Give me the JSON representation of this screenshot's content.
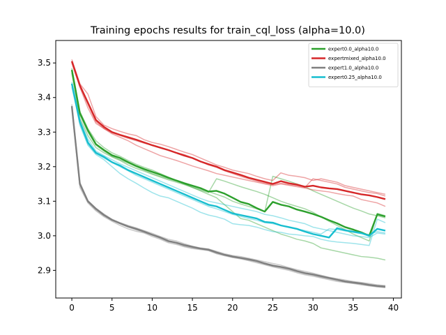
{
  "chart_data": {
    "type": "line",
    "title": "Training epochs results for train_cql_loss (alpha=10.0)",
    "xlabel": "",
    "ylabel": "",
    "xlim": [
      -2,
      41
    ],
    "ylim": [
      2.82,
      3.565
    ],
    "xticks": [
      0,
      5,
      10,
      15,
      20,
      25,
      30,
      35,
      40
    ],
    "yticks": [
      2.9,
      3.0,
      3.1,
      3.2,
      3.3,
      3.4,
      3.5
    ],
    "grid": false,
    "legend_position": "top-right",
    "series": [
      {
        "name": "expert0.0_alpha10.0",
        "color": "#2ca02c",
        "values": [
          3.48,
          3.355,
          3.305,
          3.265,
          3.248,
          3.233,
          3.225,
          3.213,
          3.202,
          3.193,
          3.185,
          3.177,
          3.168,
          3.16,
          3.152,
          3.145,
          3.138,
          3.128,
          3.13,
          3.122,
          3.11,
          3.098,
          3.092,
          3.08,
          3.07,
          3.098,
          3.09,
          3.085,
          3.076,
          3.07,
          3.063,
          3.055,
          3.045,
          3.036,
          3.025,
          3.018,
          3.01,
          3.0,
          3.062,
          3.056
        ],
        "faint": [
          [
            3.47,
            3.34,
            3.29,
            3.255,
            3.24,
            3.228,
            3.218,
            3.205,
            3.195,
            3.187,
            3.178,
            3.17,
            3.162,
            3.155,
            3.148,
            3.14,
            3.132,
            3.125,
            3.165,
            3.158,
            3.15,
            3.142,
            3.135,
            3.128,
            3.12,
            3.11,
            3.1,
            3.092,
            3.085,
            3.078,
            3.068,
            3.055,
            3.042,
            3.03,
            3.018,
            3.005,
            2.995,
            2.985,
            3.065,
            3.058
          ],
          [
            3.485,
            3.36,
            3.31,
            3.275,
            3.255,
            3.24,
            3.23,
            3.218,
            3.207,
            3.198,
            3.19,
            3.18,
            3.17,
            3.16,
            3.15,
            3.14,
            3.13,
            3.12,
            3.11,
            3.09,
            3.07,
            3.05,
            3.045,
            3.035,
            3.025,
            3.015,
            3.005,
            2.998,
            2.99,
            2.985,
            2.978,
            2.965,
            2.96,
            2.955,
            2.95,
            2.945,
            2.94,
            2.938,
            2.935,
            2.93
          ],
          [
            3.475,
            3.35,
            3.3,
            3.262,
            3.245,
            3.23,
            3.22,
            3.21,
            3.2,
            3.19,
            3.18,
            3.172,
            3.165,
            3.158,
            3.15,
            3.143,
            3.135,
            3.128,
            3.12,
            3.112,
            3.1,
            3.092,
            3.085,
            3.078,
            3.07,
            3.172,
            3.165,
            3.158,
            3.15,
            3.142,
            3.13,
            3.12,
            3.11,
            3.1,
            3.09,
            3.08,
            3.072,
            3.063,
            3.058,
            3.052
          ]
        ]
      },
      {
        "name": "expertmixed_alpha10.0",
        "color": "#d62728",
        "values": [
          3.505,
          3.435,
          3.385,
          3.335,
          3.315,
          3.3,
          3.292,
          3.285,
          3.278,
          3.27,
          3.262,
          3.255,
          3.248,
          3.24,
          3.232,
          3.225,
          3.215,
          3.207,
          3.2,
          3.19,
          3.183,
          3.176,
          3.168,
          3.162,
          3.156,
          3.15,
          3.158,
          3.152,
          3.148,
          3.142,
          3.145,
          3.14,
          3.137,
          3.135,
          3.13,
          3.125,
          3.12,
          3.117,
          3.112,
          3.106
        ],
        "faint": [
          [
            3.51,
            3.44,
            3.41,
            3.345,
            3.32,
            3.31,
            3.302,
            3.295,
            3.29,
            3.278,
            3.27,
            3.265,
            3.258,
            3.25,
            3.242,
            3.235,
            3.225,
            3.215,
            3.205,
            3.198,
            3.19,
            3.185,
            3.18,
            3.172,
            3.165,
            3.16,
            3.182,
            3.175,
            3.172,
            3.168,
            3.16,
            3.165,
            3.16,
            3.155,
            3.145,
            3.14,
            3.135,
            3.13,
            3.125,
            3.12
          ],
          [
            3.5,
            3.43,
            3.37,
            3.325,
            3.31,
            3.295,
            3.285,
            3.275,
            3.262,
            3.252,
            3.242,
            3.232,
            3.225,
            3.218,
            3.21,
            3.202,
            3.195,
            3.188,
            3.18,
            3.175,
            3.17,
            3.165,
            3.16,
            3.155,
            3.15,
            3.145,
            3.15,
            3.146,
            3.142,
            3.138,
            3.133,
            3.13,
            3.127,
            3.122,
            3.118,
            3.115,
            3.105,
            3.1,
            3.095,
            3.085
          ],
          [
            3.503,
            3.432,
            3.38,
            3.33,
            3.31,
            3.298,
            3.29,
            3.282,
            3.275,
            3.268,
            3.262,
            3.255,
            3.248,
            3.24,
            3.235,
            3.225,
            3.215,
            3.205,
            3.198,
            3.188,
            3.18,
            3.172,
            3.165,
            3.158,
            3.152,
            3.148,
            3.152,
            3.148,
            3.145,
            3.14,
            3.165,
            3.16,
            3.155,
            3.15,
            3.14,
            3.135,
            3.13,
            3.125,
            3.122,
            3.115
          ]
        ]
      },
      {
        "name": "expert1.0_alpha10.0",
        "color": "#7f7f7f",
        "values": [
          3.375,
          3.15,
          3.1,
          3.078,
          3.06,
          3.046,
          3.036,
          3.027,
          3.02,
          3.012,
          3.003,
          2.995,
          2.985,
          2.98,
          2.973,
          2.968,
          2.963,
          2.96,
          2.952,
          2.945,
          2.94,
          2.936,
          2.932,
          2.927,
          2.92,
          2.914,
          2.91,
          2.905,
          2.898,
          2.892,
          2.888,
          2.883,
          2.878,
          2.873,
          2.868,
          2.865,
          2.862,
          2.858,
          2.855,
          2.853
        ],
        "faint": [
          [
            3.38,
            3.155,
            3.102,
            3.08,
            3.063,
            3.048,
            3.038,
            3.03,
            3.023,
            3.015,
            3.007,
            2.998,
            2.99,
            2.985,
            2.977,
            2.97,
            2.965,
            2.962,
            2.955,
            2.948,
            2.943,
            2.94,
            2.935,
            2.93,
            2.925,
            2.92,
            2.915,
            2.908,
            2.902,
            2.897,
            2.892,
            2.886,
            2.88,
            2.876,
            2.872,
            2.868,
            2.865,
            2.862,
            2.858,
            2.856
          ],
          [
            3.37,
            3.14,
            3.095,
            3.072,
            3.055,
            3.042,
            3.03,
            3.02,
            3.013,
            3.008,
            2.998,
            2.99,
            2.98,
            2.975,
            2.968,
            2.963,
            2.96,
            2.957,
            2.948,
            2.942,
            2.937,
            2.933,
            2.928,
            2.922,
            2.916,
            2.91,
            2.905,
            2.9,
            2.893,
            2.887,
            2.883,
            2.878,
            2.873,
            2.868,
            2.865,
            2.862,
            2.858,
            2.855,
            2.852,
            2.85
          ],
          [
            3.372,
            3.148,
            3.098,
            3.075,
            3.058,
            3.045,
            3.035,
            3.025,
            3.017,
            3.01,
            3.002,
            2.993,
            2.983,
            2.978,
            2.97,
            2.965,
            2.962,
            2.958,
            2.95,
            2.944,
            2.938,
            2.935,
            2.93,
            2.925,
            2.918,
            2.912,
            2.908,
            2.903,
            2.896,
            2.89,
            2.886,
            2.88,
            2.876,
            2.871,
            2.866,
            2.863,
            2.86,
            2.856,
            2.853,
            2.851
          ]
        ]
      },
      {
        "name": "expert0.25_alpha10.0",
        "color": "#17becf",
        "values": [
          3.44,
          3.33,
          3.27,
          3.24,
          3.228,
          3.213,
          3.203,
          3.19,
          3.18,
          3.17,
          3.16,
          3.15,
          3.14,
          3.13,
          3.12,
          3.11,
          3.1,
          3.09,
          3.085,
          3.075,
          3.065,
          3.06,
          3.055,
          3.05,
          3.04,
          3.038,
          3.03,
          3.025,
          3.02,
          3.012,
          3.005,
          3.0,
          2.995,
          3.022,
          3.016,
          3.012,
          3.008,
          3.0,
          3.02,
          3.015
        ],
        "faint": [
          [
            3.44,
            3.32,
            3.262,
            3.235,
            3.22,
            3.2,
            3.18,
            3.165,
            3.152,
            3.138,
            3.125,
            3.115,
            3.11,
            3.1,
            3.09,
            3.08,
            3.068,
            3.06,
            3.055,
            3.048,
            3.035,
            3.032,
            3.03,
            3.025,
            3.018,
            3.012,
            3.01,
            3.005,
            3.003,
            3.0,
            2.998,
            2.99,
            2.985,
            2.982,
            2.98,
            2.978,
            2.975,
            2.972,
            3.048,
            3.038
          ],
          [
            3.445,
            3.335,
            3.28,
            3.245,
            3.232,
            3.22,
            3.208,
            3.198,
            3.188,
            3.178,
            3.168,
            3.158,
            3.148,
            3.138,
            3.128,
            3.118,
            3.108,
            3.1,
            3.095,
            3.09,
            3.085,
            3.08,
            3.075,
            3.07,
            3.062,
            3.058,
            3.052,
            3.045,
            3.04,
            3.035,
            3.025,
            3.02,
            3.015,
            3.01,
            3.005,
            3.0,
            2.998,
            2.995,
            3.008,
            3.005
          ],
          [
            3.43,
            3.325,
            3.265,
            3.238,
            3.225,
            3.212,
            3.2,
            3.188,
            3.175,
            3.165,
            3.155,
            3.145,
            3.135,
            3.125,
            3.115,
            3.105,
            3.095,
            3.085,
            3.078,
            3.07,
            3.062,
            3.056,
            3.05,
            3.045,
            3.038,
            3.035,
            3.03,
            3.026,
            3.02,
            3.015,
            3.01,
            3.005,
            3.02,
            3.018,
            3.014,
            3.01,
            3.006,
            3.004,
            3.012,
            3.008
          ]
        ]
      }
    ]
  }
}
